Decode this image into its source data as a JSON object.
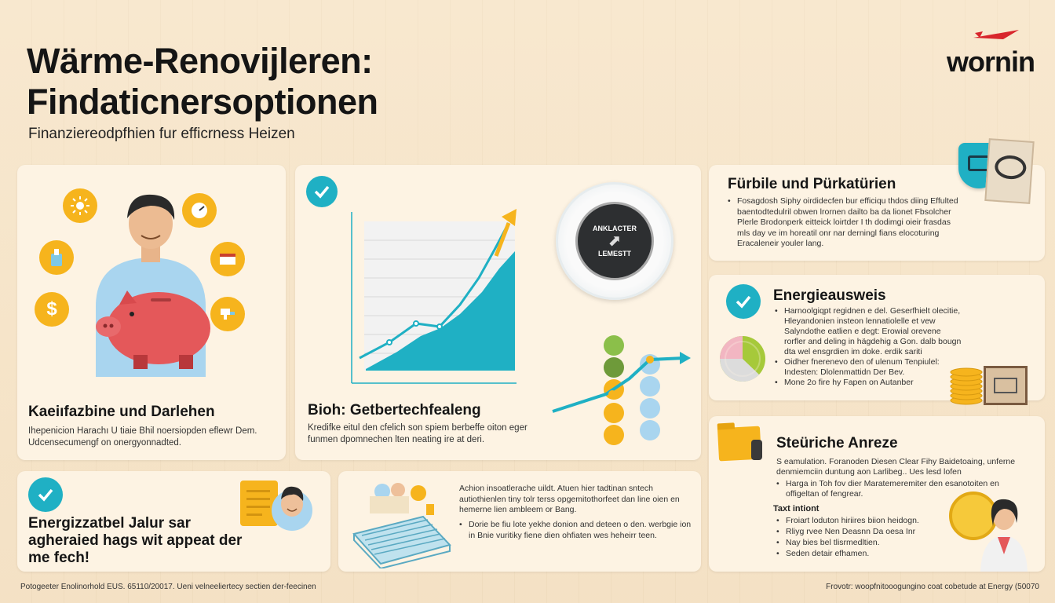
{
  "header": {
    "title_line1": "Wärme-Renovijleren:",
    "title_line2": "Findaticnersoptionen",
    "subtitle": "Finanziereodpfhien fur efficrness Heizen",
    "logo": "wornin"
  },
  "card_loans": {
    "title": "Kaeiıfazbine und Darlehen",
    "text": "Ihepenicion Harachı U tiaie Bhil noersiopden eflewr Dem. Udcensecumengf on onergyonnadted.",
    "icons": [
      "sun-icon",
      "gauge-icon",
      "paint-bucket-icon",
      "house-icon",
      "dollar-icon",
      "faucet-icon"
    ]
  },
  "card_chart": {
    "title": "Bioh: Getbertechfealeng",
    "text": "Kredifke eitul den cfelich son spiem berbeffe oiton eger funmen dpomnechen lten neating ire at deri.",
    "dial_top": "ANKLACTER",
    "dial_bottom": "LEMESTT"
  },
  "card_forder": {
    "title": "Fürbile und Pürkatürien",
    "bullets": [
      "Fosagdosh Siphy oirdidecfen bur efficiqu thdos diing Effulted baentodtedulril obwen lrornen dailto ba da lionet Fbsolcher Plerle Brodonperk eitteick loirtder I th dodimgi oieir frasdas mls day ve im horeatil onr nar derningl fians elocoturing Eracaleneir youler lang."
    ]
  },
  "card_energy": {
    "title": "Energieausweis",
    "bullets": [
      "Harnoolgiqpt regidnen e del. Geserfhielt olecitie, Hleyandonien insteon lennatiolelle et vew Salyndothe eatlien e degt: Erowial orevene rorfler and deling in hägdehig a Gon. dalb bougn dta wel ensgrdien im doke. erdik sariti",
      "Oidher fnerenevo den of ulenum Tenpiulel: Indesten: Dlolenmattidn Der Bev.",
      "Mone 2o fire hy Fapen on Autanber"
    ]
  },
  "card_tax": {
    "title": "Steüriche Anreze",
    "intro": "S eamulation. Foranoden Diesen Clear Fihy Baidetoaing, unferne denmiemciin duntung aon Larlibeg.. Ues lesd lofen",
    "bullets": [
      "Harga in Toh fov dier Maratemeremiter den esanotoiten en offigeltan of fengrear."
    ],
    "subhead": "Taxt intiont",
    "bullets2": [
      "Froiart loduton hiriires biion heidogn.",
      "Rliyg rvee Nen Deasnn Da oesa Inr",
      "Nay bies bel tlisrmedltien.",
      "Seden detair efhamen."
    ]
  },
  "card_eff": {
    "title": "Energizzatbel Jalur sar agheraied hags wit appeat der me fech!"
  },
  "card_install": {
    "intro": "Achion insoatlerache uildt. Atuen hier tadtinan sntech autiothienlen tiny tolr terss opgemitothorfeet dan line oien en hemerne lien ambleem or Bang.",
    "bullet": "Dorie be fiu lote yekhe donion and deteen o den. werbgie ion in Bnie vuritiky fiene dien ohfiaten wes heheirr teen."
  },
  "footer": {
    "left": "Potogeeter Enolinorhold EUS.   65110/20017. Ueni velneeliertecy sectien der-feecinen",
    "right": "Frovotr: woopfnitooogungino coat cobetude at Energy (50070"
  },
  "colors": {
    "teal": "#1fb0c4",
    "yellow": "#f6b41d",
    "card": "#fdf3e3",
    "background": "#f7e6cb",
    "piggy": "#e4585a"
  }
}
